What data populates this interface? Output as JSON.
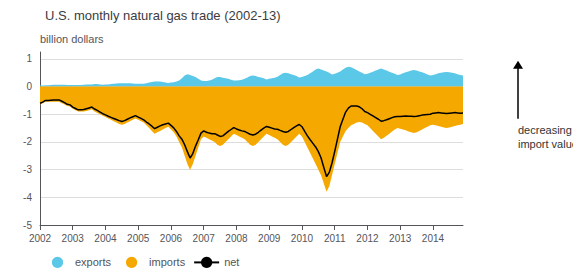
{
  "chart_data": {
    "type": "area",
    "title": "U.S. monthly natural gas trade (2002-13)",
    "ylabel": "billion dollars",
    "annotations": [
      "decreasing net",
      "import value"
    ],
    "legend": "lower left",
    "grid": true,
    "xlim": [
      2002,
      2014.917
    ],
    "xticks": [
      2002,
      2003,
      2004,
      2005,
      2006,
      2007,
      2008,
      2009,
      2010,
      2011,
      2012,
      2013,
      2014
    ],
    "ylim": [
      -5,
      1.25
    ],
    "yticks": [
      -5,
      -4,
      -3,
      -2,
      -1,
      0,
      1
    ],
    "x": [
      2002,
      2002.0833,
      2002.1667,
      2002.25,
      2002.3333,
      2002.4167,
      2002.5,
      2002.5833,
      2002.6667,
      2002.75,
      2002.8333,
      2002.9167,
      2003,
      2003.0833,
      2003.1667,
      2003.25,
      2003.3333,
      2003.4167,
      2003.5,
      2003.5833,
      2003.6667,
      2003.75,
      2003.8333,
      2003.9167,
      2004,
      2004.0833,
      2004.1667,
      2004.25,
      2004.3333,
      2004.4167,
      2004.5,
      2004.5833,
      2004.6667,
      2004.75,
      2004.8333,
      2004.9167,
      2005,
      2005.0833,
      2005.1667,
      2005.25,
      2005.3333,
      2005.4167,
      2005.5,
      2005.5833,
      2005.6667,
      2005.75,
      2005.8333,
      2005.9167,
      2006,
      2006.0833,
      2006.1667,
      2006.25,
      2006.3333,
      2006.4167,
      2006.5,
      2006.5833,
      2006.6667,
      2006.75,
      2006.8333,
      2006.9167,
      2007,
      2007.0833,
      2007.1667,
      2007.25,
      2007.3333,
      2007.4167,
      2007.5,
      2007.5833,
      2007.6667,
      2007.75,
      2007.8333,
      2007.9167,
      2008,
      2008.0833,
      2008.1667,
      2008.25,
      2008.3333,
      2008.4167,
      2008.5,
      2008.5833,
      2008.6667,
      2008.75,
      2008.8333,
      2008.9167,
      2009,
      2009.0833,
      2009.1667,
      2009.25,
      2009.3333,
      2009.4167,
      2009.5,
      2009.5833,
      2009.6667,
      2009.75,
      2009.8333,
      2009.9167,
      2010,
      2010.0833,
      2010.1667,
      2010.25,
      2010.3333,
      2010.4167,
      2010.5,
      2010.5833,
      2010.6667,
      2010.75,
      2010.8333,
      2010.9167,
      2011,
      2011.0833,
      2011.1667,
      2011.25,
      2011.3333,
      2011.4167,
      2011.5,
      2011.5833,
      2011.6667,
      2011.75,
      2011.8333,
      2011.9167,
      2012,
      2012.0833,
      2012.1667,
      2012.25,
      2012.3333,
      2012.4167,
      2012.5,
      2012.5833,
      2012.6667,
      2012.75,
      2012.8333,
      2012.9167,
      2013,
      2013.0833,
      2013.1667,
      2013.25,
      2013.3333,
      2013.4167,
      2013.5,
      2013.5833,
      2013.6667,
      2013.75,
      2013.8333,
      2013.9167,
      2014,
      2014.0833,
      2014.1667,
      2014.25,
      2014.3333,
      2014.4167,
      2014.5,
      2014.5833,
      2014.6667,
      2014.75,
      2014.8333,
      2014.9167
    ],
    "series": [
      {
        "name": "exports",
        "type": "area",
        "color": "#5bc8e8",
        "values": [
          0.05,
          0.04,
          0.05,
          0.05,
          0.06,
          0.07,
          0.07,
          0.07,
          0.07,
          0.07,
          0.06,
          0.06,
          0.06,
          0.06,
          0.06,
          0.06,
          0.07,
          0.08,
          0.08,
          0.08,
          0.09,
          0.09,
          0.08,
          0.07,
          0.08,
          0.08,
          0.09,
          0.1,
          0.11,
          0.12,
          0.12,
          0.12,
          0.12,
          0.12,
          0.11,
          0.1,
          0.1,
          0.1,
          0.1,
          0.12,
          0.15,
          0.17,
          0.18,
          0.18,
          0.18,
          0.17,
          0.15,
          0.13,
          0.15,
          0.16,
          0.18,
          0.22,
          0.3,
          0.4,
          0.45,
          0.42,
          0.38,
          0.35,
          0.28,
          0.22,
          0.2,
          0.2,
          0.22,
          0.25,
          0.3,
          0.35,
          0.35,
          0.32,
          0.3,
          0.28,
          0.25,
          0.22,
          0.22,
          0.23,
          0.25,
          0.28,
          0.33,
          0.38,
          0.4,
          0.38,
          0.35,
          0.33,
          0.3,
          0.26,
          0.28,
          0.3,
          0.32,
          0.36,
          0.42,
          0.48,
          0.5,
          0.48,
          0.45,
          0.42,
          0.38,
          0.33,
          0.35,
          0.38,
          0.42,
          0.48,
          0.55,
          0.62,
          0.65,
          0.62,
          0.58,
          0.55,
          0.5,
          0.44,
          0.46,
          0.5,
          0.55,
          0.62,
          0.68,
          0.72,
          0.7,
          0.65,
          0.6,
          0.55,
          0.5,
          0.45,
          0.46,
          0.5,
          0.54,
          0.58,
          0.62,
          0.65,
          0.62,
          0.58,
          0.54,
          0.5,
          0.46,
          0.42,
          0.44,
          0.48,
          0.52,
          0.55,
          0.58,
          0.6,
          0.58,
          0.55,
          0.52,
          0.48,
          0.44,
          0.4,
          0.42,
          0.45,
          0.48,
          0.5,
          0.52,
          0.53,
          0.52,
          0.5,
          0.48,
          0.45,
          0.42,
          0.4
        ]
      },
      {
        "name": "imports",
        "type": "area",
        "color": "#f5a800",
        "values": [
          -0.65,
          -0.6,
          -0.55,
          -0.55,
          -0.55,
          -0.55,
          -0.55,
          -0.55,
          -0.6,
          -0.65,
          -0.7,
          -0.72,
          -0.8,
          -0.85,
          -0.9,
          -0.9,
          -0.9,
          -0.88,
          -0.85,
          -0.82,
          -0.9,
          -0.95,
          -1.0,
          -1.05,
          -1.1,
          -1.15,
          -1.2,
          -1.25,
          -1.3,
          -1.35,
          -1.38,
          -1.35,
          -1.3,
          -1.25,
          -1.2,
          -1.15,
          -1.2,
          -1.25,
          -1.3,
          -1.4,
          -1.5,
          -1.6,
          -1.7,
          -1.65,
          -1.6,
          -1.55,
          -1.5,
          -1.45,
          -1.55,
          -1.65,
          -1.8,
          -2.0,
          -2.2,
          -2.5,
          -2.8,
          -3.0,
          -2.8,
          -2.5,
          -2.2,
          -1.9,
          -1.8,
          -1.85,
          -1.9,
          -1.95,
          -2.0,
          -2.1,
          -2.15,
          -2.1,
          -2.0,
          -1.9,
          -1.8,
          -1.7,
          -1.75,
          -1.8,
          -1.85,
          -1.9,
          -2.0,
          -2.1,
          -2.15,
          -2.1,
          -2.0,
          -1.9,
          -1.8,
          -1.7,
          -1.75,
          -1.8,
          -1.85,
          -1.9,
          -2.0,
          -2.1,
          -2.15,
          -2.1,
          -2.0,
          -1.9,
          -1.8,
          -1.7,
          -1.8,
          -2.0,
          -2.2,
          -2.4,
          -2.6,
          -2.8,
          -3.0,
          -3.2,
          -3.5,
          -3.8,
          -3.6,
          -3.2,
          -2.8,
          -2.4,
          -2.0,
          -1.8,
          -1.6,
          -1.5,
          -1.4,
          -1.35,
          -1.3,
          -1.28,
          -1.3,
          -1.35,
          -1.4,
          -1.5,
          -1.6,
          -1.7,
          -1.8,
          -1.9,
          -1.85,
          -1.78,
          -1.7,
          -1.62,
          -1.55,
          -1.5,
          -1.52,
          -1.55,
          -1.58,
          -1.62,
          -1.65,
          -1.68,
          -1.65,
          -1.6,
          -1.55,
          -1.5,
          -1.45,
          -1.4,
          -1.38,
          -1.4,
          -1.42,
          -1.45,
          -1.48,
          -1.5,
          -1.48,
          -1.45,
          -1.42,
          -1.4,
          -1.38,
          -1.35
        ]
      },
      {
        "name": "net",
        "type": "line",
        "color": "#000000",
        "values": [
          -0.6,
          -0.56,
          -0.5,
          -0.5,
          -0.49,
          -0.48,
          -0.48,
          -0.48,
          -0.53,
          -0.58,
          -0.64,
          -0.66,
          -0.74,
          -0.79,
          -0.84,
          -0.84,
          -0.83,
          -0.8,
          -0.77,
          -0.74,
          -0.81,
          -0.86,
          -0.92,
          -0.98,
          -1.02,
          -1.07,
          -1.11,
          -1.15,
          -1.19,
          -1.23,
          -1.26,
          -1.23,
          -1.18,
          -1.13,
          -1.09,
          -1.05,
          -1.1,
          -1.15,
          -1.2,
          -1.28,
          -1.35,
          -1.43,
          -1.52,
          -1.47,
          -1.42,
          -1.38,
          -1.35,
          -1.32,
          -1.4,
          -1.49,
          -1.62,
          -1.78,
          -1.9,
          -2.1,
          -2.35,
          -2.58,
          -2.42,
          -2.15,
          -1.92,
          -1.68,
          -1.6,
          -1.65,
          -1.68,
          -1.7,
          -1.7,
          -1.75,
          -1.8,
          -1.78,
          -1.7,
          -1.62,
          -1.55,
          -1.48,
          -1.53,
          -1.57,
          -1.6,
          -1.62,
          -1.67,
          -1.72,
          -1.75,
          -1.72,
          -1.65,
          -1.57,
          -1.5,
          -1.44,
          -1.47,
          -1.5,
          -1.53,
          -1.54,
          -1.58,
          -1.62,
          -1.65,
          -1.62,
          -1.55,
          -1.48,
          -1.42,
          -1.37,
          -1.45,
          -1.62,
          -1.78,
          -1.92,
          -2.05,
          -2.18,
          -2.35,
          -2.58,
          -2.92,
          -3.25,
          -3.1,
          -2.76,
          -2.34,
          -1.9,
          -1.45,
          -1.18,
          -0.92,
          -0.78,
          -0.7,
          -0.7,
          -0.7,
          -0.73,
          -0.8,
          -0.9,
          -0.94,
          -1.0,
          -1.06,
          -1.12,
          -1.18,
          -1.25,
          -1.23,
          -1.2,
          -1.16,
          -1.12,
          -1.09,
          -1.08,
          -1.08,
          -1.07,
          -1.06,
          -1.07,
          -1.07,
          -1.08,
          -1.07,
          -1.05,
          -1.03,
          -1.02,
          -1.01,
          -1.0,
          -0.96,
          -0.95,
          -0.94,
          -0.95,
          -0.96,
          -0.97,
          -0.96,
          -0.95,
          -0.94,
          -0.95,
          -0.96,
          -0.95
        ]
      }
    ]
  }
}
